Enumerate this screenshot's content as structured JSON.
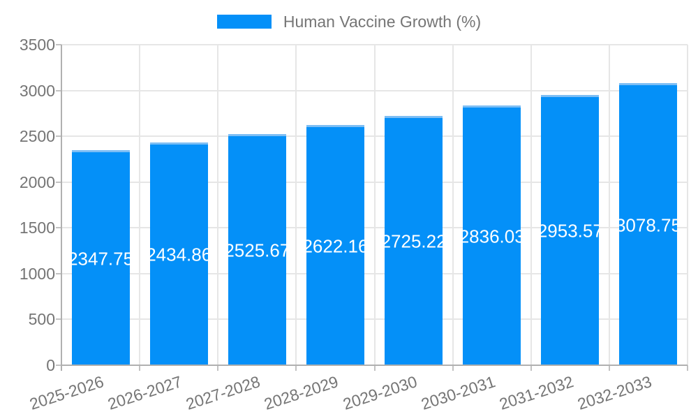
{
  "legend": {
    "label": "Human Vaccine Growth (%)"
  },
  "chart_data": {
    "type": "bar",
    "title": "Human Vaccine Growth (%)",
    "legend_position": "top",
    "categories": [
      "2025-2026",
      "2026-2027",
      "2027-2028",
      "2028-2029",
      "2029-2030",
      "2030-2031",
      "2031-2032",
      "2032-2033"
    ],
    "values": [
      2347.75,
      2434.86,
      2525.67,
      2622.16,
      2725.22,
      2836.03,
      2953.57,
      3078.75
    ],
    "value_labels": [
      "2347.75",
      "2434.86",
      "2525.67",
      "2622.16",
      "2725.22",
      "2836.03",
      "2953.57",
      "3078.75"
    ],
    "xlabel": "",
    "ylabel": "",
    "ylim": [
      0,
      3500
    ],
    "yticks": [
      0,
      500,
      1000,
      1500,
      2000,
      2500,
      3000,
      3500
    ],
    "grid": true,
    "colors": {
      "bar": "#0490F8",
      "bar_top_edge": "#7DBEF4",
      "grid": "#E6E6E6",
      "axis": "#B0B0B0",
      "tick": "#C2C2C2",
      "label_text": "#757575",
      "value_text": "#FFFFFF",
      "background": "#FFFFFF"
    }
  }
}
